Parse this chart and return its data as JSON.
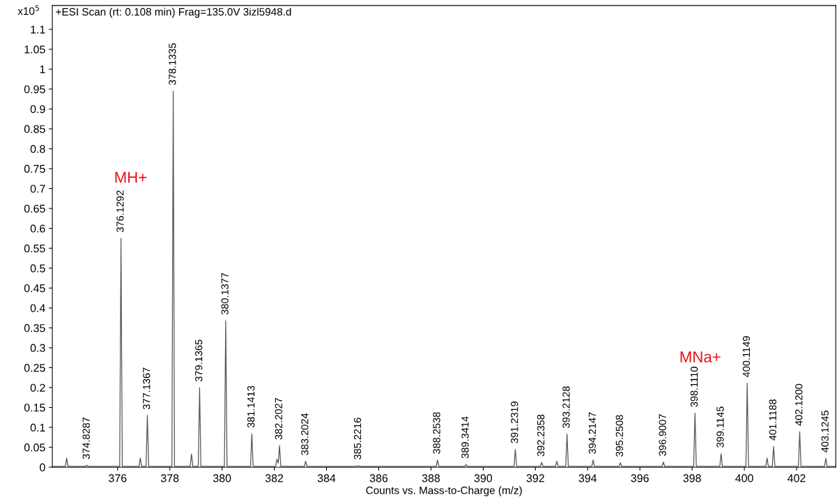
{
  "chart_data": {
    "type": "line",
    "title": "+ESI Scan (rt: 0.108 min) Frag=135.0V 3izl5948.d",
    "xlabel": "Counts vs. Mass-to-Charge (m/z)",
    "ylabel": "x10$^{5}$",
    "xlim": [
      373.5,
      403.5
    ],
    "xticks": [
      376,
      378,
      380,
      382,
      384,
      386,
      388,
      390,
      392,
      394,
      396,
      398,
      400,
      402
    ],
    "ylim": [
      0,
      1.16
    ],
    "yticks": [
      0,
      0.05,
      0.1,
      0.15,
      0.2,
      0.25,
      0.3,
      0.35,
      0.4,
      0.45,
      0.5,
      0.55,
      0.6,
      0.65,
      0.7,
      0.75,
      0.8,
      0.85,
      0.9,
      0.95,
      1,
      1.05,
      1.1
    ],
    "grid": false,
    "marker": "none",
    "line_style": "solid",
    "annotations": [
      {
        "text": "374.8287",
        "x": 374.83,
        "y": 0.005
      },
      {
        "text": "376.1292",
        "x": 376.13,
        "y": 0.575
      },
      "MH+",
      {
        "text": "377.1367",
        "x": 377.14,
        "y": 0.13
      },
      {
        "text": "378.1335",
        "x": 378.13,
        "y": 0.945
      },
      {
        "text": "379.1365",
        "x": 379.14,
        "y": 0.2
      },
      {
        "text": "380.1377",
        "x": 380.14,
        "y": 0.368
      },
      {
        "text": "381.1413",
        "x": 381.14,
        "y": 0.084
      },
      {
        "text": "382.2027",
        "x": 382.2,
        "y": 0.054
      },
      {
        "text": "383.2024",
        "x": 383.2,
        "y": 0.015
      },
      {
        "text": "385.2216",
        "x": 385.22,
        "y": 0.004
      },
      {
        "text": "388.2538",
        "x": 388.25,
        "y": 0.018
      },
      {
        "text": "389.3414",
        "x": 389.34,
        "y": 0.007
      },
      {
        "text": "391.2319",
        "x": 391.23,
        "y": 0.045
      },
      {
        "text": "392.2358",
        "x": 392.24,
        "y": 0.012
      },
      {
        "text": "393.2128",
        "x": 393.21,
        "y": 0.083
      },
      {
        "text": "394.2147",
        "x": 394.21,
        "y": 0.018
      },
      {
        "text": "395.2508",
        "x": 395.25,
        "y": 0.011
      },
      {
        "text": "396.9007",
        "x": 396.9,
        "y": 0.013
      },
      {
        "text": "398.1110",
        "x": 398.11,
        "y": 0.136
      },
      "MNa+",
      {
        "text": "399.1145",
        "x": 399.11,
        "y": 0.034
      },
      {
        "text": "400.1149",
        "x": 400.11,
        "y": 0.211
      },
      {
        "text": "401.1188",
        "x": 401.12,
        "y": 0.052
      },
      {
        "text": "402.1200",
        "x": 402.12,
        "y": 0.089
      },
      {
        "text": "403.1245",
        "x": 403.12,
        "y": 0.022
      }
    ],
    "series": [
      {
        "color": "#555555",
        "x": [
          373.5,
          374.0,
          374.05,
          374.1,
          374.78,
          374.83,
          374.88,
          376.08,
          376.13,
          376.18,
          376.82,
          376.87,
          376.92,
          377.09,
          377.14,
          377.19,
          378.08,
          378.13,
          378.18,
          378.78,
          378.83,
          378.88,
          379.09,
          379.14,
          379.19,
          380.09,
          380.14,
          380.19,
          381.09,
          381.14,
          381.19,
          382.05,
          382.1,
          382.15,
          382.2,
          382.25,
          383.15,
          383.2,
          383.25,
          385.17,
          385.22,
          385.27,
          388.2,
          388.25,
          388.3,
          389.29,
          389.34,
          389.39,
          391.18,
          391.23,
          391.28,
          392.19,
          392.24,
          392.29,
          392.77,
          392.82,
          392.87,
          393.16,
          393.21,
          393.26,
          394.16,
          394.21,
          394.26,
          395.2,
          395.25,
          395.3,
          396.85,
          396.9,
          396.95,
          398.06,
          398.11,
          398.16,
          399.06,
          399.11,
          399.16,
          400.06,
          400.11,
          400.16,
          400.82,
          400.87,
          400.92,
          401.07,
          401.12,
          401.17,
          402.07,
          402.12,
          402.17,
          403.07,
          403.12,
          403.17,
          403.5
        ],
        "values": [
          0.002,
          0.002,
          0.023,
          0.002,
          0.002,
          0.005,
          0.002,
          0.002,
          0.575,
          0.002,
          0.002,
          0.023,
          0.002,
          0.002,
          0.13,
          0.002,
          0.002,
          0.945,
          0.002,
          0.002,
          0.033,
          0.002,
          0.002,
          0.2,
          0.002,
          0.002,
          0.368,
          0.002,
          0.002,
          0.084,
          0.002,
          0.002,
          0.02,
          0.01,
          0.054,
          0.002,
          0.002,
          0.015,
          0.002,
          0.002,
          0.004,
          0.002,
          0.002,
          0.018,
          0.002,
          0.002,
          0.007,
          0.002,
          0.002,
          0.045,
          0.002,
          0.002,
          0.012,
          0.002,
          0.002,
          0.015,
          0.002,
          0.002,
          0.083,
          0.002,
          0.002,
          0.018,
          0.002,
          0.002,
          0.011,
          0.002,
          0.002,
          0.013,
          0.002,
          0.002,
          0.136,
          0.002,
          0.002,
          0.034,
          0.002,
          0.002,
          0.211,
          0.002,
          0.002,
          0.023,
          0.002,
          0.002,
          0.052,
          0.002,
          0.002,
          0.089,
          0.002,
          0.002,
          0.022,
          0.002,
          0.002
        ]
      }
    ]
  }
}
